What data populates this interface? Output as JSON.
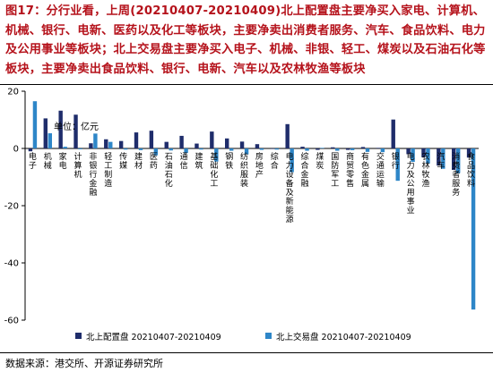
{
  "title": "图17：分行业看，上周(20210407-20210409)北上配置盘主要净买入家电、计算机、机械、银行、电新、医药以及化工等板块，主要净卖出消费者服务、汽车、食品饮料、电力及公用事业等板块；北上交易盘主要净买入电子、机械、非银、轻工、煤炭以及石油石化等板块，主要净卖出食品饮料、银行、电新、汽车以及农林牧渔等板块",
  "source": "数据来源：港交所、开源证券研究所",
  "colors": {
    "series1": "#1f2d6b",
    "series2": "#2e86c8"
  },
  "chart_data": {
    "type": "bar",
    "unit_label": "单位：亿元",
    "ylim": [
      -60,
      20
    ],
    "yticks": [
      20,
      0,
      -20,
      -40,
      -60
    ],
    "grid": false,
    "legend_position": "bottom",
    "categories": [
      "电子",
      "机械",
      "家电",
      "计算机",
      "非银行金融",
      "轻工制造",
      "传媒",
      "建材",
      "医药",
      "石油石化",
      "通信",
      "建筑",
      "基础化工",
      "钢铁",
      "纺织服装",
      "房地产",
      "综合",
      "电力设备及新能源",
      "综合金融",
      "煤炭",
      "国防军工",
      "商贸零售",
      "有色金属",
      "交通运输",
      "银行",
      "电力及公用事业",
      "农林牧渔",
      "汽车",
      "消费者服务",
      "食品饮料"
    ],
    "series": [
      {
        "name": "北上配置盘 20210407-20210409",
        "values": [
          -1.0,
          10.5,
          13.2,
          11.8,
          1.8,
          3.2,
          2.6,
          5.6,
          6.2,
          2.3,
          4.4,
          1.7,
          5.9,
          3.5,
          2.4,
          1.5,
          0.0,
          8.5,
          0.6,
          -0.5,
          0.4,
          -0.5,
          0.5,
          0.2,
          10.1,
          -2.0,
          -3.1,
          -6.0,
          -7.5,
          -3.2
        ]
      },
      {
        "name": "北上交易盘 20210407-20210409",
        "values": [
          16.5,
          5.3,
          0.6,
          -0.3,
          5.2,
          2.3,
          -0.4,
          -0.6,
          -2.4,
          -0.7,
          -1.6,
          -0.4,
          -4.6,
          -0.8,
          -2.1,
          -0.5,
          -0.4,
          -8.3,
          -0.8,
          0.2,
          -0.8,
          -0.6,
          -1.2,
          -1.3,
          -11.3,
          -4.7,
          -5.3,
          -7.1,
          -8.6,
          -56.3
        ]
      }
    ]
  }
}
